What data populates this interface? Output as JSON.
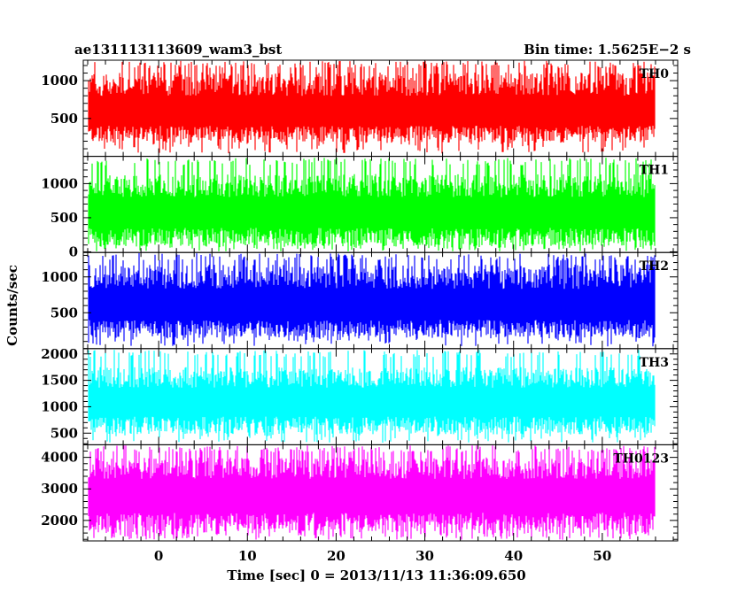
{
  "chart_data": {
    "type": "line",
    "title": "ae131113113609_wam3_bst",
    "subtitle": "Bin time: 1.5625E−2 s",
    "xlabel": "Time [sec] 0 = 2013/11/13 11:36:09.650",
    "ylabel": "Counts/sec",
    "xlim": [
      -8.5,
      58.5
    ],
    "x_ticks": [
      0,
      10,
      20,
      30,
      40,
      50
    ],
    "x_tick_labels": [
      "0",
      "10",
      "20",
      "30",
      "40",
      "50"
    ],
    "x_data_range": [
      -8,
      56
    ],
    "grid": false,
    "panels": [
      {
        "name": "TH0",
        "color": "#ff0000",
        "ylim": [
          0,
          1270
        ],
        "ticks": [
          500,
          1000
        ],
        "tick_labels": [
          "500",
          "1000"
        ],
        "base": 180,
        "mean": 630,
        "amp": 480,
        "top": 1260
      },
      {
        "name": "TH1",
        "color": "#00ff00",
        "ylim": [
          -10,
          1400
        ],
        "ticks": [
          0,
          500,
          1000
        ],
        "tick_labels": [
          "0",
          "500",
          "1000"
        ],
        "base": 80,
        "mean": 620,
        "amp": 520,
        "top": 1380
      },
      {
        "name": "TH2",
        "color": "#0000ff",
        "ylim": [
          0,
          1340
        ],
        "ticks": [
          500,
          1000
        ],
        "tick_labels": [
          "500",
          "1000"
        ],
        "base": 150,
        "mean": 650,
        "amp": 520,
        "top": 1330
      },
      {
        "name": "TH3",
        "color": "#00ffff",
        "ylim": [
          280,
          2100
        ],
        "ticks": [
          500,
          1000,
          1500,
          2000
        ],
        "tick_labels": [
          "500",
          "1000",
          "1500",
          "2000"
        ],
        "base": 480,
        "mean": 1150,
        "amp": 600,
        "top": 2080
      },
      {
        "name": "TH0123",
        "color": "#ff00ff",
        "ylim": [
          1350,
          4400
        ],
        "ticks": [
          2000,
          3000,
          4000
        ],
        "tick_labels": [
          "2000",
          "3000",
          "4000"
        ],
        "base": 1550,
        "mean": 2950,
        "amp": 1050,
        "top": 4380
      }
    ]
  }
}
